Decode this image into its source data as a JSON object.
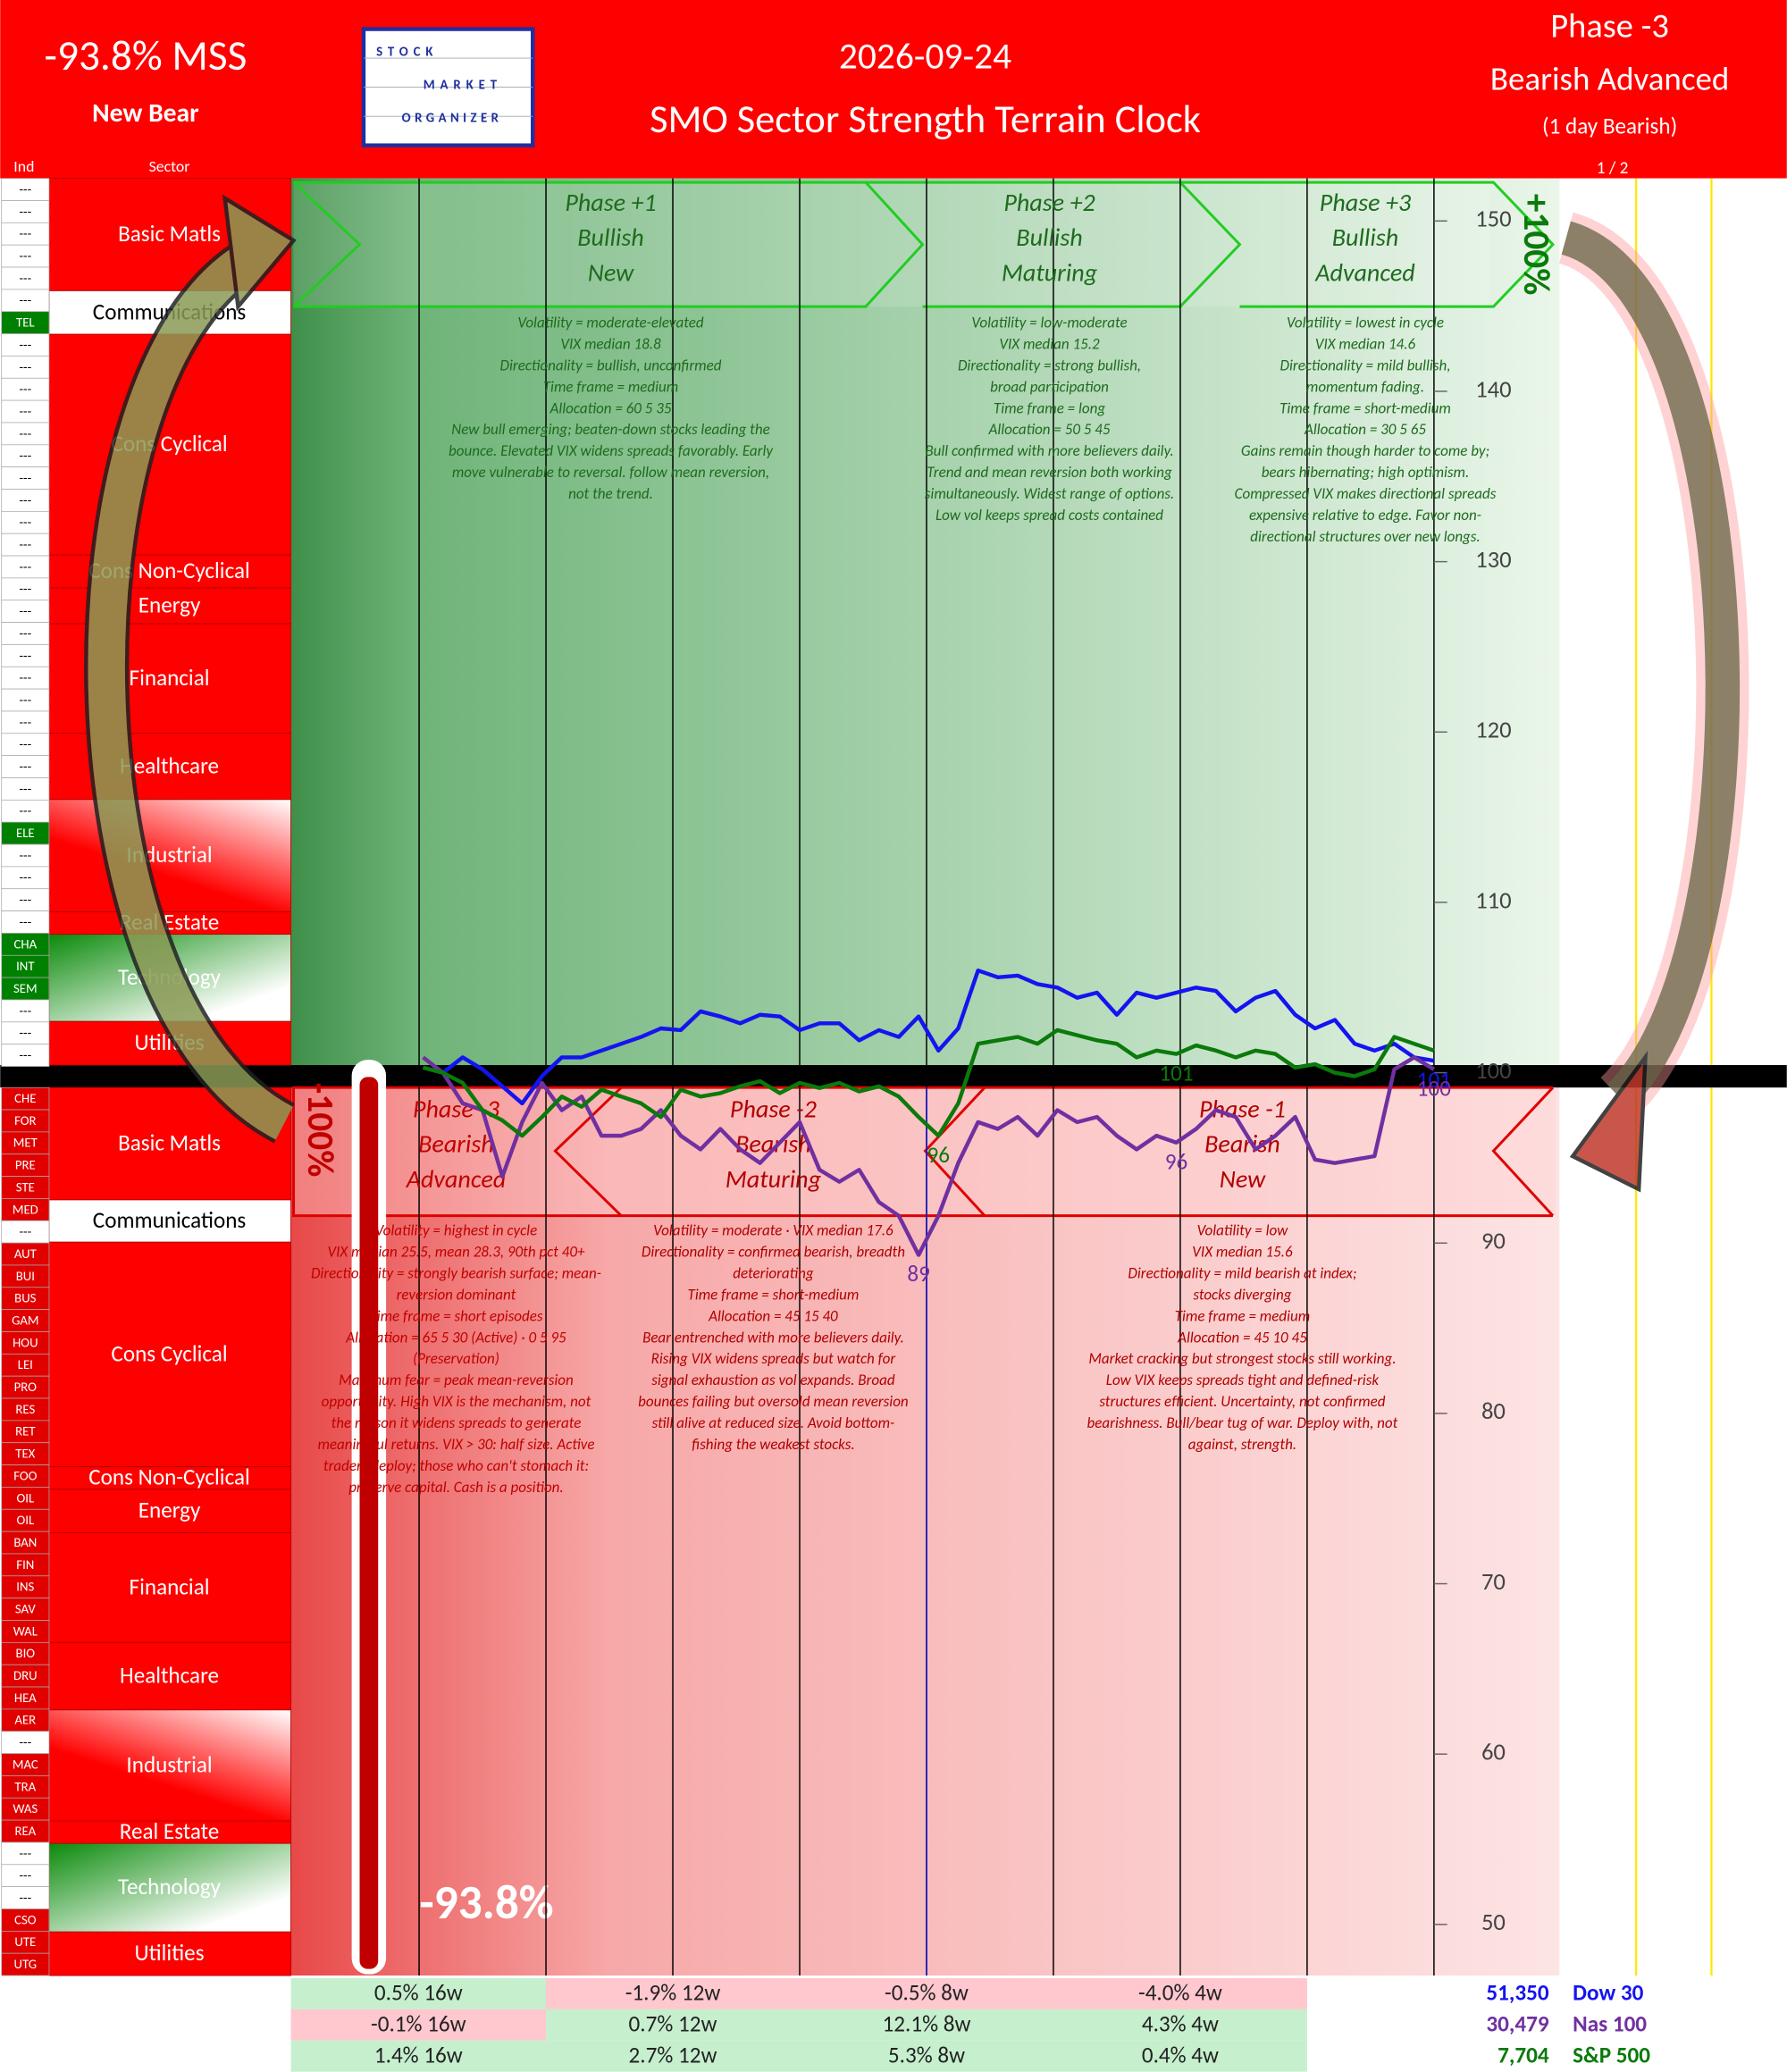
{
  "header": {
    "mss": "-93.8% MSS",
    "status": "New Bear",
    "date": "2026-09-24",
    "title": "SMO Sector Strength Terrain Clock",
    "phase": "Phase -3",
    "phase_name": "Bearish Advanced",
    "phase_note": "(1 day Bearish)",
    "page": "1 / 2",
    "logo": [
      "STOCK",
      "MARKET",
      "ORGANIZER"
    ],
    "col_ind": "Ind",
    "col_sector": "Sector"
  },
  "indicators_top": [
    "---",
    "---",
    "---",
    "---",
    "---",
    "---",
    "TEL",
    "---",
    "---",
    "---",
    "---",
    "---",
    "---",
    "---",
    "---",
    "---",
    "---",
    "---",
    "---",
    "---",
    "---",
    "---",
    "---",
    "---",
    "---",
    "---",
    "---",
    "---",
    "---",
    "ELE",
    "---",
    "---",
    "---",
    "---",
    "CHA",
    "INT",
    "SEM",
    "---",
    "---",
    "---"
  ],
  "indicators_bottom": [
    "CHE",
    "FOR",
    "MET",
    "PRE",
    "STE",
    "MED",
    "---",
    "AUT",
    "BUI",
    "BUS",
    "GAM",
    "HOU",
    "LEI",
    "PRO",
    "RES",
    "RET",
    "TEX",
    "FOO",
    "OIL",
    "OIL",
    "BAN",
    "FIN",
    "INS",
    "SAV",
    "WAL",
    "BIO",
    "DRU",
    "HEA",
    "AER",
    "---",
    "MAC",
    "TRA",
    "WAS",
    "REA",
    "---",
    "---",
    "---",
    "CSO",
    "UTE",
    "UTG"
  ],
  "sectors_top": [
    "Basic Matls",
    "Communications",
    "Cons Cyclical",
    "Cons Non-Cyclical",
    "Energy",
    "Financial",
    "Healthcare",
    "Industrial",
    "Real Estate",
    "Technology",
    "Utilities"
  ],
  "sectors_bottom": [
    "Basic Matls",
    "Communications",
    "Cons Cyclical",
    "Cons Non-Cyclical",
    "Energy",
    "Financial",
    "Healthcare",
    "Industrial",
    "Real Estate",
    "Technology",
    "Utilities"
  ],
  "phases": [
    {
      "heading": [
        "Phase +1",
        "Bullish",
        "New"
      ],
      "notes": [
        "Volatility = moderate-elevated",
        "VIX median 18.8",
        "Directionality = bullish, unconfirmed",
        "Time frame = medium",
        "Allocation = 60 5 35",
        "New bull emerging; beaten-down stocks leading the",
        "bounce. Elevated VIX widens spreads favorably. Early",
        "move vulnerable to reversal. follow mean reversion,",
        "not the trend."
      ]
    },
    {
      "heading": [
        "Phase +2",
        "Bullish",
        "Maturing"
      ],
      "notes": [
        "Volatility = low-moderate",
        "VIX median 15.2",
        "Directionality = strong bullish,",
        "broad participation",
        "Time frame = long",
        "Allocation = 50 5 45",
        "Bull confirmed with more believers daily.",
        "Trend and mean reversion both working",
        "simultaneously. Widest range of options.",
        "Low vol keeps spread costs contained"
      ]
    },
    {
      "heading": [
        "Phase +3",
        "Bullish",
        "Advanced"
      ],
      "notes": [
        "Volatility = lowest in cycle",
        "VIX median 14.6",
        "Directionality = mild bullish,",
        "momentum fading.",
        "Time frame = short-medium",
        "Allocation = 30 5 65",
        "Gains remain though harder to come by;",
        "bears hibernating; high optimism.",
        "Compressed VIX makes directional spreads",
        "expensive relative to edge. Favor non-",
        "directional structures over new longs."
      ]
    },
    {
      "heading": [
        "Phase -3",
        "Bearish",
        "Advanced"
      ],
      "notes": [
        "Volatility = highest in cycle",
        "VIX median 25.5, mean 28.3, 90th pct 40+",
        "Directionality = strongly bearish surface; mean-",
        "reversion dominant",
        "Time frame = short episodes",
        "Allocation = 65 5 30 (Active) · 0 5 95",
        "(Preservation)",
        "Maximum fear = peak mean-reversion",
        "opportunity. High VIX is the mechanism, not",
        "the reason it widens spreads to generate",
        "meaningful returns. VIX > 30: half size. Active",
        "traders deploy; those who can't stomach it:",
        "preserve capital. Cash is a position."
      ]
    },
    {
      "heading": [
        "Phase -2",
        "Bearish",
        "Maturing"
      ],
      "notes": [
        "Volatility = moderate · VIX median 17.6",
        "Directionality = confirmed bearish, breadth",
        "deteriorating",
        "Time frame = short-medium",
        "Allocation = 45 15 40",
        "Bear entrenched with more believers daily.",
        "Rising VIX widens spreads but watch for",
        "signal exhaustion as vol expands. Broad",
        "bounces failing but oversold mean reversion",
        "still alive at reduced size. Avoid bottom-",
        "fishing the weakest stocks."
      ]
    },
    {
      "heading": [
        "Phase -1",
        "Bearish",
        "New"
      ],
      "notes": [
        "Volatility = low",
        "VIX median 15.6",
        "Directionality = mild bearish at index;",
        "stocks diverging",
        "Time frame = medium",
        "Allocation = 45 10 45",
        "Market cracking but strongest stocks still working.",
        "Low VIX keeps spreads tight and defined-risk",
        "structures efficient. Uncertainty, not confirmed",
        "bearishness. Bull/bear tug of war. Deploy with, not",
        "against, strength."
      ]
    }
  ],
  "labels": {
    "bull_max": "+100%",
    "bear_max": "-100%",
    "mss_value": "-93.8%"
  },
  "chart_data": {
    "type": "line",
    "ylim": [
      47,
      152.5
    ],
    "yticks": [
      50,
      60,
      70,
      80,
      90,
      100,
      110,
      120,
      130,
      140,
      150
    ],
    "series": [
      {
        "name": "Dow 30",
        "color": "#1414f0",
        "quote": "51,350",
        "changes": [
          "0.5% 16w",
          "-1.9% 12w",
          "-0.5% 8w",
          "-4.0% 4w"
        ],
        "values": [
          100.3,
          100,
          100.9,
          100.2,
          99.2,
          98.2,
          99.8,
          100.9,
          100.9,
          101.3,
          101.7,
          102.1,
          102.6,
          102.5,
          103.6,
          103.3,
          102.9,
          103.4,
          103.3,
          102.5,
          102.9,
          102.9,
          101.9,
          102.5,
          102.1,
          103.3,
          101.3,
          102.6,
          106.0,
          105.6,
          105.7,
          105.2,
          105.0,
          104.4,
          104.7,
          103.4,
          104.7,
          104.4,
          104.7,
          105.0,
          104.8,
          103.6,
          104.4,
          104.8,
          103.4,
          102.6,
          103.1,
          101.7,
          101.3,
          101.7,
          100.9,
          100.7
        ],
        "value_labels": [
          null,
          null,
          null,
          null,
          null,
          null,
          null,
          null,
          null,
          null,
          null,
          null,
          null,
          null,
          null,
          null,
          null,
          null,
          null,
          null,
          null,
          null,
          null,
          null,
          null,
          null,
          null,
          null,
          null,
          null,
          null,
          null,
          null,
          null,
          null,
          null,
          null,
          null,
          null,
          null,
          null,
          null,
          null,
          null,
          null,
          null,
          null,
          null,
          null,
          null,
          null,
          "101"
        ]
      },
      {
        "name": "Nas 100",
        "color": "#7030a0",
        "quote": "30,479",
        "changes": [
          "-0.1% 16w",
          "0.7% 12w",
          "12.1% 8w",
          "4.3% 4w"
        ],
        "values": [
          100.9,
          100,
          98.2,
          97.8,
          93.9,
          97.1,
          99.4,
          97.8,
          98.6,
          96.3,
          96.3,
          96.7,
          97.8,
          96.3,
          95.5,
          96.7,
          95.5,
          94.7,
          95.9,
          97.1,
          94.3,
          93.6,
          94.3,
          92.4,
          91.6,
          89.3,
          91.6,
          94.7,
          97.1,
          96.7,
          97.4,
          96.3,
          97.8,
          97.1,
          97.4,
          96.3,
          95.5,
          96.3,
          95.9,
          96.7,
          97.8,
          97.4,
          95.5,
          96.3,
          97.4,
          94.9,
          94.7,
          94.9,
          95.1,
          100.2,
          100.9,
          100.2
        ],
        "value_labels": [
          null,
          null,
          null,
          null,
          null,
          null,
          null,
          null,
          null,
          null,
          null,
          null,
          null,
          null,
          null,
          null,
          null,
          null,
          null,
          null,
          null,
          null,
          null,
          null,
          null,
          "89",
          null,
          null,
          null,
          null,
          null,
          null,
          null,
          null,
          null,
          null,
          null,
          null,
          "96",
          null,
          null,
          null,
          null,
          null,
          null,
          null,
          null,
          null,
          null,
          null,
          null,
          "100"
        ]
      },
      {
        "name": "S&P 500",
        "color": "#0a7a0a",
        "quote": "7,704",
        "changes": [
          "1.4% 16w",
          "2.7% 12w",
          "5.3% 8w",
          "0.4% 4w"
        ],
        "values": [
          100.3,
          100,
          99.4,
          97.8,
          97.2,
          96.3,
          97.4,
          98.6,
          98.0,
          99.0,
          98.6,
          98.2,
          97.4,
          99.0,
          98.6,
          98.8,
          99.2,
          99.5,
          98.8,
          99.4,
          99.1,
          99.4,
          98.9,
          99.2,
          98.6,
          97.4,
          96.3,
          98.2,
          101.7,
          101.9,
          102.1,
          101.7,
          102.5,
          102.2,
          101.9,
          101.7,
          100.9,
          101.3,
          101.1,
          101.6,
          101.3,
          100.9,
          101.3,
          101.1,
          100.3,
          100.5,
          100,
          99.8,
          100.2,
          102.1,
          101.7,
          101.3
        ],
        "value_labels": [
          null,
          null,
          null,
          null,
          null,
          null,
          null,
          null,
          null,
          null,
          null,
          null,
          null,
          null,
          null,
          null,
          null,
          null,
          null,
          null,
          null,
          null,
          null,
          null,
          null,
          null,
          "96",
          null,
          null,
          null,
          null,
          null,
          null,
          null,
          null,
          null,
          null,
          null,
          "101",
          null,
          null,
          null,
          null,
          null,
          null,
          null,
          null,
          null,
          null,
          null,
          null,
          null
        ]
      }
    ]
  }
}
